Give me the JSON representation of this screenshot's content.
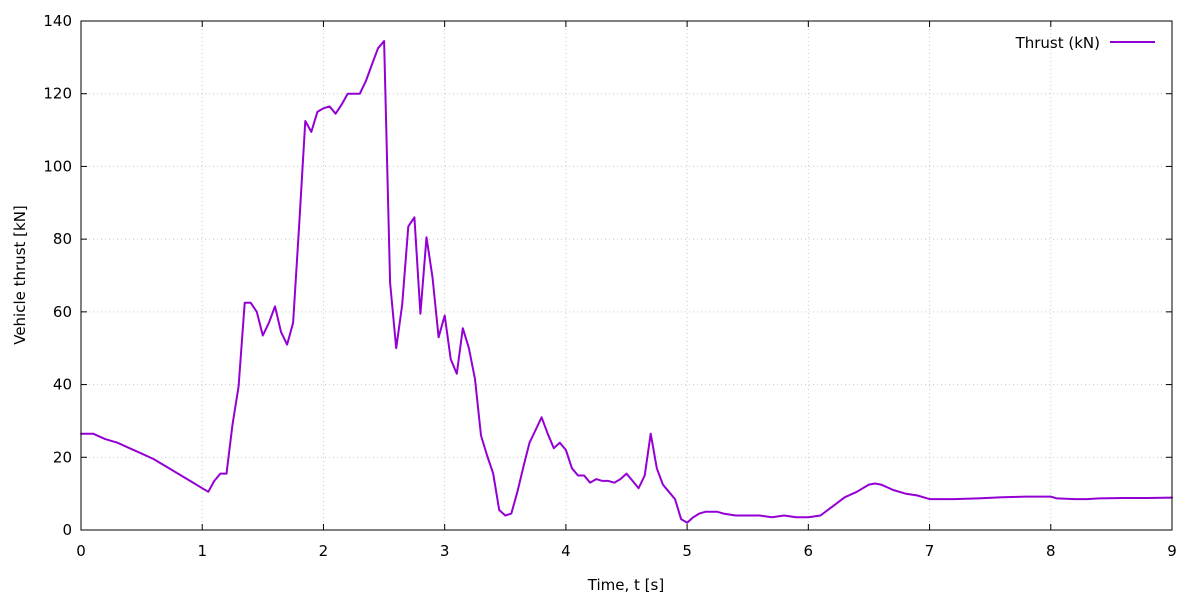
{
  "chart_data": {
    "type": "line",
    "title": "",
    "xlabel": "Time, t [s]",
    "ylabel": "Vehicle thrust [kN]",
    "xlim": [
      0,
      9
    ],
    "ylim": [
      0,
      140
    ],
    "x_ticks": [
      0,
      1,
      2,
      3,
      4,
      5,
      6,
      7,
      8,
      9
    ],
    "y_ticks": [
      0,
      20,
      40,
      60,
      80,
      100,
      120,
      140
    ],
    "grid": true,
    "legend": {
      "position": "top-right"
    },
    "series": [
      {
        "name": "Thrust (kN)",
        "color": "#9400d3",
        "x": [
          0.0,
          0.1,
          0.2,
          0.3,
          0.4,
          0.5,
          0.6,
          0.7,
          0.8,
          0.9,
          1.0,
          1.05,
          1.1,
          1.15,
          1.2,
          1.25,
          1.3,
          1.35,
          1.4,
          1.45,
          1.5,
          1.55,
          1.6,
          1.65,
          1.7,
          1.75,
          1.8,
          1.85,
          1.9,
          1.95,
          2.0,
          2.05,
          2.1,
          2.15,
          2.2,
          2.25,
          2.3,
          2.35,
          2.4,
          2.45,
          2.5,
          2.55,
          2.6,
          2.65,
          2.7,
          2.75,
          2.8,
          2.85,
          2.9,
          2.95,
          3.0,
          3.05,
          3.1,
          3.15,
          3.2,
          3.25,
          3.3,
          3.35,
          3.4,
          3.45,
          3.5,
          3.55,
          3.6,
          3.65,
          3.7,
          3.75,
          3.8,
          3.85,
          3.9,
          3.95,
          4.0,
          4.05,
          4.1,
          4.15,
          4.2,
          4.25,
          4.3,
          4.35,
          4.4,
          4.45,
          4.5,
          4.55,
          4.6,
          4.65,
          4.7,
          4.75,
          4.8,
          4.85,
          4.9,
          4.95,
          5.0,
          5.05,
          5.1,
          5.15,
          5.2,
          5.25,
          5.3,
          5.4,
          5.5,
          5.6,
          5.7,
          5.8,
          5.9,
          6.0,
          6.1,
          6.2,
          6.3,
          6.4,
          6.5,
          6.55,
          6.6,
          6.7,
          6.8,
          6.9,
          7.0,
          7.2,
          7.4,
          7.6,
          7.8,
          8.0,
          8.05,
          8.2,
          8.3,
          8.4,
          8.6,
          8.8,
          9.0
        ],
        "y": [
          26.5,
          26.5,
          25,
          24,
          22.5,
          21,
          19.5,
          17.5,
          15.5,
          13.5,
          11.5,
          10.5,
          13.5,
          15.5,
          15.5,
          29,
          39.5,
          62.5,
          62.5,
          60,
          53.5,
          57,
          61.5,
          54.5,
          51,
          57,
          84,
          112.5,
          109.5,
          115,
          116,
          116.5,
          114.5,
          117,
          120,
          120,
          120,
          123.5,
          128,
          132.5,
          134.5,
          68,
          50,
          62,
          83.5,
          86,
          59.5,
          80.5,
          69.5,
          53,
          59,
          47,
          43,
          55.5,
          50,
          41.5,
          26,
          20.5,
          15.5,
          5.5,
          4,
          4.5,
          10.5,
          17.5,
          24,
          27.5,
          31,
          26.5,
          22.5,
          24,
          22,
          17,
          15,
          15,
          13,
          14,
          13.5,
          13.5,
          13,
          14,
          15.5,
          13.5,
          11.5,
          15,
          26.5,
          17,
          12.5,
          10.5,
          8.5,
          3,
          2,
          3.5,
          4.5,
          5,
          5,
          5,
          4.5,
          4,
          4,
          4,
          3.5,
          4,
          3.5,
          3.5,
          4,
          6.5,
          9,
          10.5,
          12.5,
          12.8,
          12.5,
          11,
          10,
          9.5,
          8.5,
          8.5,
          8.7,
          9,
          9.2,
          9.2,
          8.7,
          8.5,
          8.5,
          8.7,
          8.8,
          8.8,
          8.9
        ]
      }
    ]
  }
}
